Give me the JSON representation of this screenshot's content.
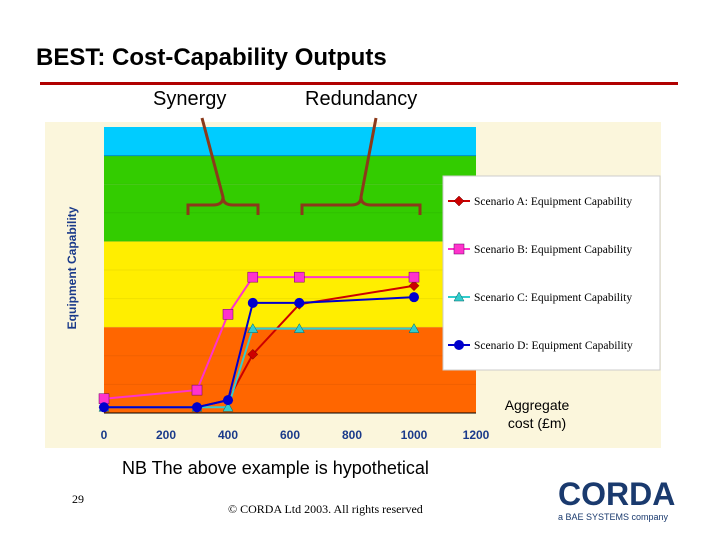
{
  "slide": {
    "title": "BEST: Cost-Capability Outputs",
    "synergy_label": "Synergy",
    "redundancy_label": "Redundancy",
    "note": "NB The above example is hypothetical",
    "page_number": "29",
    "copyright": "© CORDA Ltd 2003. All rights reserved",
    "logo_word": "CORDA",
    "logo_sub": "a BAE SYSTEMS company"
  },
  "colors": {
    "accent_rule": "#b00000",
    "bands": [
      "#ff6600",
      "#ffee00",
      "#33cc00",
      "#00ccff"
    ],
    "series": [
      "#cc0000",
      "#ff33cc",
      "#33cccc",
      "#0000cc"
    ],
    "brace": "#8b3a1a"
  },
  "chart_data": {
    "type": "line",
    "ylabel": "Equipment Capability",
    "xlabel": "Aggregate cost (£m)",
    "x_ticks": [
      "0",
      "200",
      "400",
      "600",
      "800",
      "1000",
      "1200"
    ],
    "xlim": [
      0,
      1200
    ],
    "ylim": [
      0,
      10
    ],
    "bands": [
      {
        "from": 0,
        "to": 3,
        "color": "#ff6600"
      },
      {
        "from": 3,
        "to": 5,
        "color": "#ffee00"
      },
      {
        "from": 5,
        "to": 6,
        "color": "#ffee00"
      },
      {
        "from": 6,
        "to": 8,
        "color": "#33cc00"
      },
      {
        "from": 8,
        "to": 9,
        "color": "#33cc00"
      },
      {
        "from": 9,
        "to": 10,
        "color": "#00ccff"
      }
    ],
    "series": [
      {
        "name": "Scenario A: Equipment Capability",
        "marker": "diamond",
        "color": "#cc0000",
        "x": [
          0,
          300,
          400,
          480,
          630,
          1000
        ],
        "y": [
          0.2,
          0.2,
          0.45,
          2.05,
          3.8,
          4.45
        ]
      },
      {
        "name": "Scenario B: Equipment Capability",
        "marker": "square",
        "color": "#ff33cc",
        "x": [
          0,
          300,
          400,
          480,
          630,
          1000
        ],
        "y": [
          0.5,
          0.8,
          3.45,
          4.75,
          4.75,
          4.75
        ]
      },
      {
        "name": "Scenario C: Equipment Capability",
        "marker": "triangle",
        "color": "#33cccc",
        "x": [
          0,
          300,
          400,
          480,
          630,
          1000
        ],
        "y": [
          0.2,
          0.2,
          0.2,
          2.95,
          2.95,
          2.95
        ]
      },
      {
        "name": "Scenario D: Equipment Capability",
        "marker": "circle",
        "color": "#0000cc",
        "x": [
          0,
          300,
          400,
          480,
          630,
          1000
        ],
        "y": [
          0.2,
          0.2,
          0.45,
          3.85,
          3.85,
          4.05
        ]
      }
    ]
  }
}
